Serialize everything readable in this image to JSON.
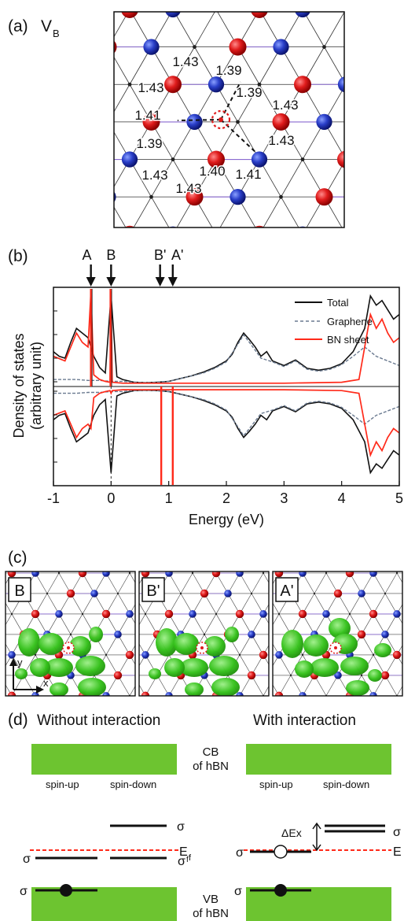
{
  "panel_a": {
    "label": "(a)",
    "title_main": "V",
    "title_sub": "B",
    "bond_lengths": [
      "1.43",
      "1.39",
      "1.43",
      "1.39",
      "1.43",
      "1.41",
      "1.43",
      "1.39",
      "1.40",
      "1.41",
      "1.43",
      "1.43"
    ]
  },
  "panel_b": {
    "label": "(b)",
    "arrow_labels": [
      "A",
      "B",
      "B'",
      "A'"
    ],
    "ylabel_line1": "Density of states",
    "ylabel_line2": "(arbitrary unit)",
    "xlabel": "Energy (eV)",
    "xticks": [
      "-1",
      "0",
      "1",
      "2",
      "3",
      "4",
      "5"
    ],
    "legend": [
      "Total",
      "Graphene",
      "BN sheet"
    ]
  },
  "panel_c": {
    "label": "(c)",
    "subpanels": [
      "B",
      "B'",
      "A'"
    ],
    "axis_y": "y",
    "axis_x": "x"
  },
  "panel_d": {
    "label": "(d)",
    "left_title": "Without interaction",
    "right_title": "With interaction",
    "cb_line1": "CB",
    "cb_line2": "of hBN",
    "vb_line1": "VB",
    "vb_line2": "of hBN",
    "spin_up": "spin-up",
    "spin_down": "spin-down",
    "sigma": "σ",
    "sigma_f": "σ",
    "sigma_f_sub": "f",
    "fermi": "E",
    "fermi_sub": "f",
    "fermi_right": "E",
    "delta_ex": "ΔEx"
  },
  "chart_data": {
    "type": "line",
    "title": "",
    "xlabel": "Energy (eV)",
    "ylabel": "Density of states (arbitrary unit)",
    "xlim": [
      -1,
      5
    ],
    "series": [
      {
        "name": "Total",
        "x": [
          -1,
          -0.9,
          -0.8,
          -0.7,
          -0.6,
          -0.5,
          -0.4,
          -0.3,
          -0.2,
          -0.1,
          0,
          0.1,
          0.2,
          0.4,
          0.6,
          0.8,
          1,
          1.2,
          1.4,
          1.6,
          1.8,
          2,
          2.1,
          2.2,
          2.3,
          2.4,
          2.5,
          2.6,
          2.7,
          2.8,
          3,
          3.2,
          3.4,
          3.6,
          3.8,
          4,
          4.2,
          4.4,
          4.5,
          4.6,
          4.7,
          4.8,
          4.9,
          5
        ],
        "y": [
          0.35,
          0.3,
          0.28,
          0.45,
          0.6,
          0.55,
          0.5,
          0.3,
          0.18,
          0.12,
          0.95,
          0.08,
          0.05,
          0.02,
          0.015,
          0.02,
          0.03,
          0.06,
          0.09,
          0.13,
          0.18,
          0.25,
          0.32,
          0.45,
          0.55,
          0.48,
          0.4,
          0.3,
          0.35,
          0.25,
          0.2,
          0.26,
          0.17,
          0.15,
          0.17,
          0.22,
          0.35,
          0.6,
          0.95,
          0.85,
          0.9,
          0.8,
          0.7,
          0.75
        ]
      },
      {
        "name": "Graphene",
        "x": [
          -1,
          -0.8,
          -0.6,
          -0.4,
          -0.2,
          0,
          0.2,
          0.4,
          0.6,
          0.8,
          1,
          1.2,
          1.4,
          1.6,
          1.8,
          2,
          2.2,
          2.3,
          2.4,
          2.6,
          2.8,
          3,
          3.2,
          3.4,
          3.6,
          3.8,
          4,
          4.2,
          4.4,
          4.5,
          4.6,
          4.8,
          5
        ],
        "y": [
          0.05,
          0.05,
          0.05,
          0.04,
          0.04,
          0.03,
          0.03,
          0.02,
          0.015,
          0.02,
          0.03,
          0.06,
          0.09,
          0.12,
          0.17,
          0.24,
          0.43,
          0.53,
          0.45,
          0.28,
          0.24,
          0.19,
          0.25,
          0.16,
          0.14,
          0.16,
          0.21,
          0.3,
          0.4,
          0.35,
          0.3,
          0.25,
          0.2
        ]
      },
      {
        "name": "BN sheet",
        "x": [
          -1,
          -0.8,
          -0.6,
          -0.5,
          -0.4,
          -0.35,
          -0.3,
          -0.2,
          -0.1,
          -0.02,
          0,
          0.02,
          0.2,
          1,
          2,
          3,
          4,
          4.3,
          4.4,
          4.5,
          4.6,
          4.7,
          4.8,
          4.9,
          5
        ],
        "y": [
          0.3,
          0.25,
          0.55,
          0.45,
          0.4,
          1.0,
          0.1,
          0.05,
          0.03,
          0.02,
          1.0,
          0.02,
          0.01,
          0.01,
          0.01,
          0.01,
          0.02,
          0.05,
          0.4,
          0.75,
          0.6,
          0.7,
          0.55,
          0.45,
          0.5
        ]
      }
    ]
  }
}
